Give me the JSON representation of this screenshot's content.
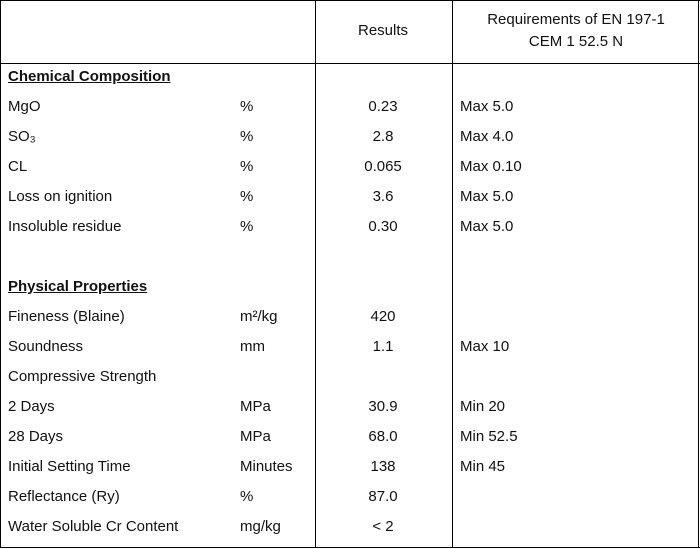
{
  "header": {
    "results": "Results",
    "requirements": [
      "Requirements of EN 197-1",
      "CEM 1 52.5 N"
    ]
  },
  "sections": [
    {
      "title": "Chemical Composition",
      "rows": [
        {
          "name": "MgO",
          "unit": "%",
          "result": "0.23",
          "requirement": "Max 5.0"
        },
        {
          "name": "SO₃",
          "unit": "%",
          "result": "2.8",
          "requirement": "Max 4.0"
        },
        {
          "name": "CL",
          "unit": "%",
          "result": "0.065",
          "requirement": "Max 0.10"
        },
        {
          "name": "Loss on ignition",
          "unit": "%",
          "result": "3.6",
          "requirement": "Max 5.0"
        },
        {
          "name": "Insoluble residue",
          "unit": "%",
          "result": "0.30",
          "requirement": "Max 5.0"
        }
      ]
    },
    {
      "title": "Physical Properties",
      "rows": [
        {
          "name": "Fineness (Blaine)",
          "unit": "m²/kg",
          "result": "420"
        },
        {
          "name": "Soundness",
          "unit": "mm",
          "result": "1.1",
          "requirement": "Max 10"
        },
        {
          "name": "Compressive Strength"
        },
        {
          "name": "2 Days",
          "unit": "MPa",
          "result": "30.9",
          "requirement": "Min 20"
        },
        {
          "name": "28 Days",
          "unit": "MPa",
          "result": "68.0",
          "requirement": "Min 52.5"
        },
        {
          "name": "Initial Setting Time",
          "unit": "Minutes",
          "result": "138",
          "requirement": "Min 45"
        },
        {
          "name": "Reflectance (Ry)",
          "unit": "%",
          "result": "87.0"
        },
        {
          "name": "Water Soluble Cr Content",
          "unit": "mg/kg",
          "result": "< 2"
        }
      ]
    }
  ]
}
